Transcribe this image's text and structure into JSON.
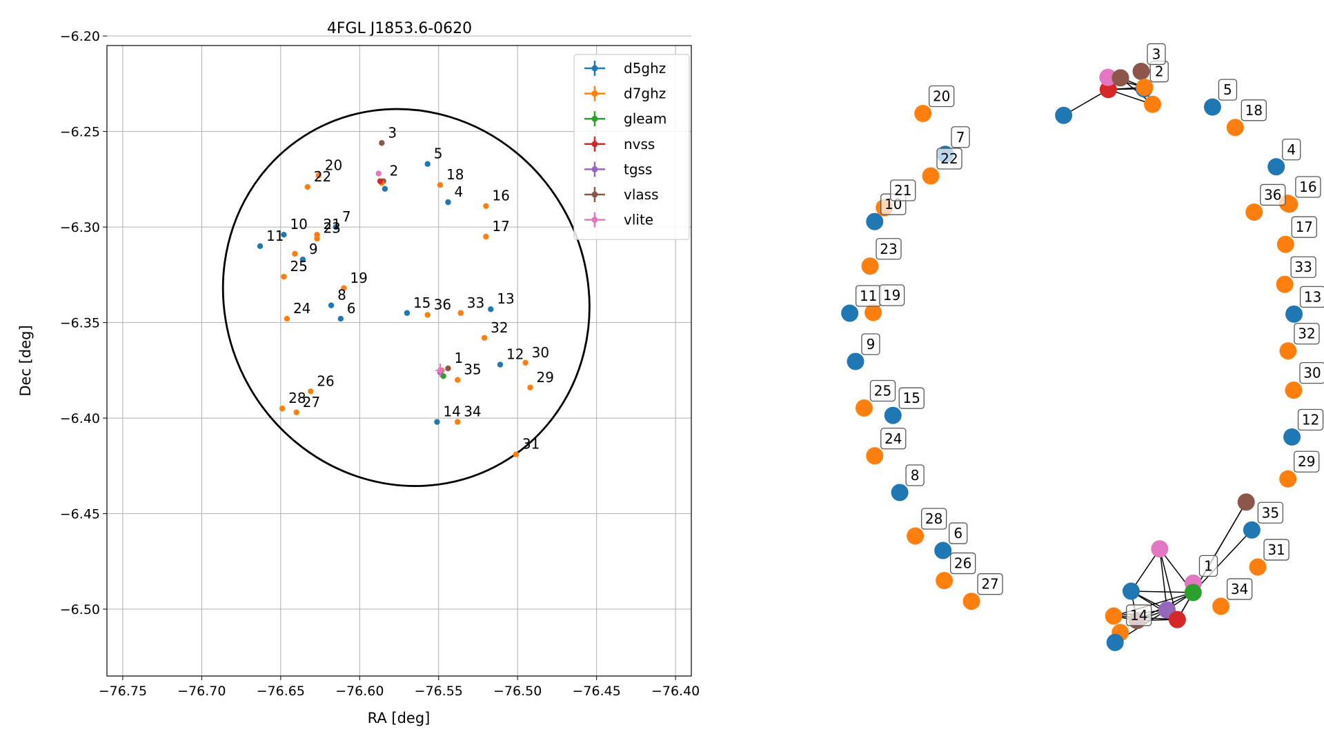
{
  "colors": {
    "d5ghz": "#1f77b4",
    "d7ghz": "#ff7f0e",
    "gleam": "#2ca02c",
    "nvss": "#d62728",
    "tgss": "#9467bd",
    "vlass": "#8c564b",
    "vlite": "#e377c2"
  },
  "chart_data": [
    {
      "type": "scatter",
      "title": "4FGL J1853.6-0620",
      "xlabel": "RA [deg]",
      "ylabel": "Dec [deg]",
      "xlim": [
        -76.76,
        -76.39
      ],
      "ylim": [
        -6.535,
        -6.205
      ],
      "xticks": [
        -76.75,
        -76.7,
        -76.65,
        -76.6,
        -76.55,
        -76.5,
        -76.45,
        -76.4
      ],
      "xtick_labels": [
        "−76.75",
        "−76.70",
        "−76.65",
        "−76.60",
        "−76.55",
        "−76.50",
        "−76.45",
        "−76.40"
      ],
      "yticks": [
        -6.2,
        -6.25,
        -6.3,
        -6.35,
        -6.4,
        -6.45,
        -6.5
      ],
      "ytick_labels": [
        "−6.20",
        "−6.25",
        "−6.30",
        "−6.35",
        "−6.40",
        "−6.45",
        "−6.50"
      ],
      "grid": true,
      "legend_position": "top-right",
      "legend": [
        "d5ghz",
        "d7ghz",
        "gleam",
        "nvss",
        "tgss",
        "vlass",
        "vlite"
      ],
      "ellipse": {
        "center_ra": -76.5705,
        "center_dec": -6.3369,
        "semi_major_deg": 0.1143,
        "semi_minor_deg": 0.1,
        "angle_deg": -30
      },
      "points": [
        {
          "label": "1",
          "survey": "vlass",
          "ra": -76.544,
          "dec": -6.374
        },
        {
          "label": "",
          "survey": "d5ghz",
          "ra": -76.549,
          "dec": -6.376
        },
        {
          "label": "",
          "survey": "d7ghz",
          "ra": -76.548,
          "dec": -6.375
        },
        {
          "label": "",
          "survey": "gleam",
          "ra": -76.547,
          "dec": -6.378
        },
        {
          "label": "",
          "survey": "nvss",
          "ra": -76.549,
          "dec": -6.376
        },
        {
          "label": "",
          "survey": "tgss",
          "ra": -76.549,
          "dec": -6.376
        },
        {
          "label": "",
          "survey": "vlite",
          "ra": -76.549,
          "dec": -6.375
        },
        {
          "label": "2",
          "survey": "vlass",
          "ra": -76.585,
          "dec": -6.276
        },
        {
          "label": "",
          "survey": "d5ghz",
          "ra": -76.584,
          "dec": -6.28
        },
        {
          "label": "",
          "survey": "d7ghz",
          "ra": -76.586,
          "dec": -6.277
        },
        {
          "label": "",
          "survey": "nvss",
          "ra": -76.587,
          "dec": -6.276
        },
        {
          "label": "",
          "survey": "vlite",
          "ra": -76.588,
          "dec": -6.272
        },
        {
          "label": "3",
          "survey": "vlass",
          "ra": -76.586,
          "dec": -6.256
        },
        {
          "label": "4",
          "survey": "d5ghz",
          "ra": -76.544,
          "dec": -6.287
        },
        {
          "label": "5",
          "survey": "d5ghz",
          "ra": -76.557,
          "dec": -6.267
        },
        {
          "label": "6",
          "survey": "d5ghz",
          "ra": -76.612,
          "dec": -6.348
        },
        {
          "label": "7",
          "survey": "d5ghz",
          "ra": -76.615,
          "dec": -6.3
        },
        {
          "label": "8",
          "survey": "d5ghz",
          "ra": -76.618,
          "dec": -6.341
        },
        {
          "label": "9",
          "survey": "d5ghz",
          "ra": -76.636,
          "dec": -6.317
        },
        {
          "label": "10",
          "survey": "d5ghz",
          "ra": -76.648,
          "dec": -6.304
        },
        {
          "label": "11",
          "survey": "d5ghz",
          "ra": -76.663,
          "dec": -6.31
        },
        {
          "label": "12",
          "survey": "d5ghz",
          "ra": -76.511,
          "dec": -6.372
        },
        {
          "label": "13",
          "survey": "d5ghz",
          "ra": -76.517,
          "dec": -6.343
        },
        {
          "label": "14",
          "survey": "d5ghz",
          "ra": -76.551,
          "dec": -6.402
        },
        {
          "label": "15",
          "survey": "d5ghz",
          "ra": -76.57,
          "dec": -6.345
        },
        {
          "label": "16",
          "survey": "d7ghz",
          "ra": -76.52,
          "dec": -6.289
        },
        {
          "label": "17",
          "survey": "d7ghz",
          "ra": -76.52,
          "dec": -6.305
        },
        {
          "label": "18",
          "survey": "d7ghz",
          "ra": -76.549,
          "dec": -6.278
        },
        {
          "label": "19",
          "survey": "d7ghz",
          "ra": -76.61,
          "dec": -6.332
        },
        {
          "label": "20",
          "survey": "d7ghz",
          "ra": -76.626,
          "dec": -6.273
        },
        {
          "label": "21",
          "survey": "d7ghz",
          "ra": -76.627,
          "dec": -6.304
        },
        {
          "label": "22",
          "survey": "d7ghz",
          "ra": -76.633,
          "dec": -6.279
        },
        {
          "label": "23",
          "survey": "d7ghz",
          "ra": -76.627,
          "dec": -6.306
        },
        {
          "label": "24",
          "survey": "d7ghz",
          "ra": -76.646,
          "dec": -6.348
        },
        {
          "label": "25",
          "survey": "d7ghz",
          "ra": -76.648,
          "dec": -6.326
        },
        {
          "label": "26",
          "survey": "d7ghz",
          "ra": -76.631,
          "dec": -6.386
        },
        {
          "label": "27",
          "survey": "d7ghz",
          "ra": -76.64,
          "dec": -6.397
        },
        {
          "label": "28",
          "survey": "d7ghz",
          "ra": -76.649,
          "dec": -6.395
        },
        {
          "label": "29",
          "survey": "d7ghz",
          "ra": -76.492,
          "dec": -6.384
        },
        {
          "label": "30",
          "survey": "d7ghz",
          "ra": -76.495,
          "dec": -6.371
        },
        {
          "label": "31",
          "survey": "d7ghz",
          "ra": -76.501,
          "dec": -6.419
        },
        {
          "label": "32",
          "survey": "d7ghz",
          "ra": -76.521,
          "dec": -6.358
        },
        {
          "label": "33",
          "survey": "d7ghz",
          "ra": -76.536,
          "dec": -6.345
        },
        {
          "label": "34",
          "survey": "d7ghz",
          "ra": -76.538,
          "dec": -6.402
        },
        {
          "label": "35",
          "survey": "d7ghz",
          "ra": -76.538,
          "dec": -6.38
        },
        {
          "label": "36",
          "survey": "d7ghz",
          "ra": -76.557,
          "dec": -6.346
        },
        {
          "label": "",
          "survey": "d7ghz",
          "ra": -76.641,
          "dec": -6.314
        }
      ]
    },
    {
      "type": "network",
      "nodes": [
        {
          "id": "n1",
          "label": "1",
          "survey": "vlite",
          "pos": [
            0.7718,
            0.1684
          ]
        },
        {
          "id": "n2",
          "label": "2",
          "survey": "d5ghz",
          "pos": [
            0.6865,
            0.9244
          ]
        },
        {
          "id": "n3",
          "label": "3",
          "survey": "vlass",
          "pos": [
            0.6814,
            0.951
          ]
        },
        {
          "id": "n4",
          "label": "4",
          "survey": "d5ghz",
          "pos": [
            0.9159,
            0.8051
          ]
        },
        {
          "id": "n5",
          "label": "5",
          "survey": "d5ghz",
          "pos": [
            0.8053,
            0.8965
          ]
        },
        {
          "id": "n6",
          "label": "6",
          "survey": "d5ghz",
          "pos": [
            0.3374,
            0.2183
          ]
        },
        {
          "id": "n7",
          "label": "7",
          "survey": "d5ghz",
          "pos": [
            0.3414,
            0.8241
          ]
        },
        {
          "id": "n8",
          "label": "8",
          "survey": "d5ghz",
          "pos": [
            0.2624,
            0.307
          ]
        },
        {
          "id": "n9",
          "label": "9",
          "survey": "d5ghz",
          "pos": [
            0.1856,
            0.5074
          ]
        },
        {
          "id": "n10",
          "label": "10",
          "survey": "d5ghz",
          "pos": [
            0.2189,
            0.7213
          ]
        },
        {
          "id": "n11",
          "label": "11",
          "survey": "d5ghz",
          "pos": [
            0.1756,
            0.5812
          ]
        },
        {
          "id": "n12",
          "label": "12",
          "survey": "d5ghz",
          "pos": [
            0.9432,
            0.3919
          ]
        },
        {
          "id": "n13",
          "label": "13",
          "survey": "d5ghz",
          "pos": [
            0.9468,
            0.5798
          ]
        },
        {
          "id": "n14",
          "label": "14",
          "survey": "d7ghz",
          "pos": [
            0.6452,
            0.0929
          ]
        },
        {
          "id": "n15",
          "label": "15",
          "survey": "d5ghz",
          "pos": [
            0.2506,
            0.4249
          ]
        },
        {
          "id": "n16",
          "label": "16",
          "survey": "d7ghz",
          "pos": [
            0.9388,
            0.7479
          ]
        },
        {
          "id": "n17",
          "label": "17",
          "survey": "d7ghz",
          "pos": [
            0.9321,
            0.6865
          ]
        },
        {
          "id": "n18",
          "label": "18",
          "survey": "d7ghz",
          "pos": [
            0.8447,
            0.8652
          ]
        },
        {
          "id": "n19",
          "label": "19",
          "survey": "d7ghz",
          "pos": [
            0.2163,
            0.5823
          ]
        },
        {
          "id": "n20",
          "label": "20",
          "survey": "d7ghz",
          "pos": [
            0.3026,
            0.8866
          ]
        },
        {
          "id": "n21",
          "label": "21",
          "survey": "d7ghz",
          "pos": [
            0.2356,
            0.7426
          ]
        },
        {
          "id": "n22",
          "label": "22",
          "survey": "d7ghz",
          "pos": [
            0.3162,
            0.7911
          ]
        },
        {
          "id": "n23",
          "label": "23",
          "survey": "d7ghz",
          "pos": [
            0.2108,
            0.6532
          ]
        },
        {
          "id": "n24",
          "label": "24",
          "survey": "d7ghz",
          "pos": [
            0.2189,
            0.3631
          ]
        },
        {
          "id": "n25",
          "label": "25",
          "survey": "d7ghz",
          "pos": [
            0.2006,
            0.4362
          ]
        },
        {
          "id": "n26",
          "label": "26",
          "survey": "d7ghz",
          "pos": [
            0.3397,
            0.1724
          ]
        },
        {
          "id": "n27",
          "label": "27",
          "survey": "d7ghz",
          "pos": [
            0.3869,
            0.1406
          ]
        },
        {
          "id": "n28",
          "label": "28",
          "survey": "d7ghz",
          "pos": [
            0.2894,
            0.2405
          ]
        },
        {
          "id": "n29",
          "label": "29",
          "survey": "d7ghz",
          "pos": [
            0.9362,
            0.3278
          ]
        },
        {
          "id": "n30",
          "label": "30",
          "survey": "d7ghz",
          "pos": [
            0.9461,
            0.4635
          ]
        },
        {
          "id": "n31",
          "label": "31",
          "survey": "d7ghz",
          "pos": [
            0.8839,
            0.1931
          ]
        },
        {
          "id": "n32",
          "label": "32",
          "survey": "d7ghz",
          "pos": [
            0.9365,
            0.5235
          ]
        },
        {
          "id": "n33",
          "label": "33",
          "survey": "d7ghz",
          "pos": [
            0.9307,
            0.6253
          ]
        },
        {
          "id": "n34",
          "label": "34",
          "survey": "d7ghz",
          "pos": [
            0.8199,
            0.133
          ]
        },
        {
          "id": "n35",
          "label": "35",
          "survey": "d5ghz",
          "pos": [
            0.8735,
            0.2497
          ]
        },
        {
          "id": "n36",
          "label": "36",
          "survey": "d7ghz",
          "pos": [
            0.8776,
            0.7358
          ]
        },
        {
          "id": "a1",
          "label": "",
          "survey": "d7ghz",
          "pos": [
            0.6875,
            0.9266
          ]
        },
        {
          "id": "a2",
          "label": "",
          "survey": "d7ghz",
          "pos": [
            0.7012,
            0.9006
          ]
        },
        {
          "id": "a3",
          "label": "",
          "survey": "nvss",
          "pos": [
            0.6244,
            0.9232
          ]
        },
        {
          "id": "a4",
          "label": "",
          "survey": "vlite",
          "pos": [
            0.6238,
            0.9418
          ]
        },
        {
          "id": "a5",
          "label": "",
          "survey": "vlass",
          "pos": [
            0.6455,
            0.9411
          ]
        },
        {
          "id": "a6",
          "label": "",
          "survey": "d5ghz",
          "pos": [
            0.5469,
            0.8837
          ]
        },
        {
          "id": "a7",
          "label": "",
          "survey": "d7ghz",
          "pos": [
            0.6338,
            0.1181
          ]
        },
        {
          "id": "a8",
          "label": "",
          "survey": "d5ghz",
          "pos": [
            0.664,
            0.1561
          ]
        },
        {
          "id": "a9",
          "label": "",
          "survey": "vlass",
          "pos": [
            0.6743,
            0.1113
          ]
        },
        {
          "id": "a10",
          "label": "",
          "survey": "vlite",
          "pos": [
            0.7136,
            0.2208
          ]
        },
        {
          "id": "a11",
          "label": "",
          "survey": "tgss",
          "pos": [
            0.7264,
            0.1274
          ]
        },
        {
          "id": "a12",
          "label": "",
          "survey": "nvss",
          "pos": [
            0.7442,
            0.1127
          ]
        },
        {
          "id": "a13",
          "label": "",
          "survey": "gleam",
          "pos": [
            0.7716,
            0.1541
          ]
        },
        {
          "id": "a14",
          "label": "",
          "survey": "vlass",
          "pos": [
            0.8637,
            0.2924
          ]
        },
        {
          "id": "a15",
          "label": "",
          "survey": "d5ghz",
          "pos": [
            0.6362,
            0.0777
          ]
        },
        {
          "id": "a16",
          "label": "",
          "survey": "d7ghz",
          "pos": [
            0.9357,
            0.7494
          ]
        }
      ],
      "edges": [
        [
          "a3",
          "a4"
        ],
        [
          "a3",
          "a5"
        ],
        [
          "a3",
          "a1"
        ],
        [
          "a3",
          "a2"
        ],
        [
          "a3",
          "a6"
        ],
        [
          "a3",
          "n2"
        ],
        [
          "a5",
          "a1"
        ],
        [
          "a5",
          "a2"
        ],
        [
          "a4",
          "a1"
        ],
        [
          "a1",
          "a2"
        ],
        [
          "a8",
          "a11"
        ],
        [
          "a8",
          "a12"
        ],
        [
          "a8",
          "a13"
        ],
        [
          "a8",
          "a9"
        ],
        [
          "a8",
          "a10"
        ],
        [
          "a7",
          "a11"
        ],
        [
          "a7",
          "a12"
        ],
        [
          "a7",
          "a13"
        ],
        [
          "a7",
          "a9"
        ],
        [
          "a9",
          "a11"
        ],
        [
          "a9",
          "a12"
        ],
        [
          "a9",
          "a13"
        ],
        [
          "a10",
          "a11"
        ],
        [
          "a10",
          "a12"
        ],
        [
          "a10",
          "a13"
        ],
        [
          "a11",
          "a12"
        ],
        [
          "a11",
          "a13"
        ],
        [
          "a12",
          "a13"
        ],
        [
          "a15",
          "a11"
        ],
        [
          "a13",
          "a14"
        ],
        [
          "a13",
          "n35"
        ],
        [
          "a12",
          "a14"
        ],
        [
          "a13",
          "n1"
        ]
      ]
    }
  ]
}
